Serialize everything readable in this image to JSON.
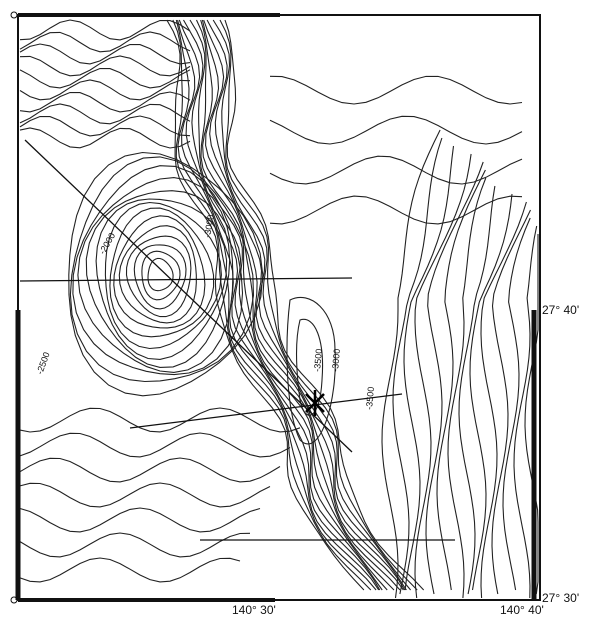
{
  "map": {
    "lon_labels": [
      "140° 30'",
      "140° 40'"
    ],
    "lat_labels": [
      "27° 40'",
      "27° 30'"
    ],
    "contour_labels": [
      "-2000",
      "-3000",
      "-2500",
      "-3500",
      "-3000",
      "-3500"
    ]
  }
}
